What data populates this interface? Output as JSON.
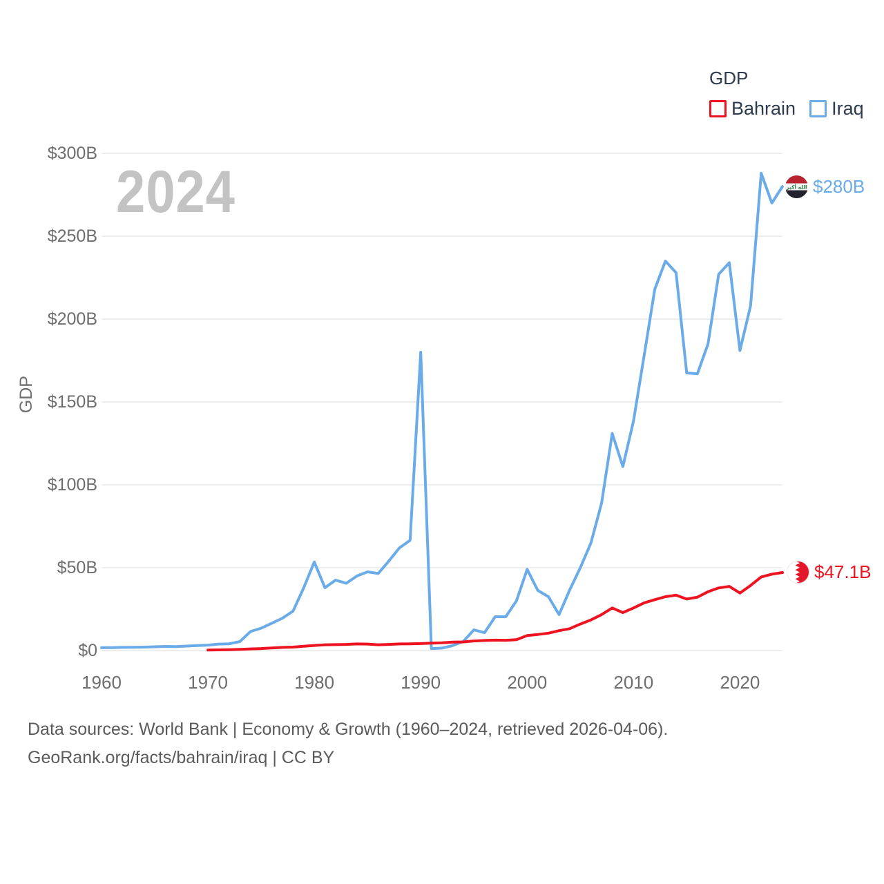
{
  "watermark": "2024",
  "legend": {
    "title": "GDP",
    "items": [
      {
        "label": "Bahrain",
        "color": "#ee1320"
      },
      {
        "label": "Iraq",
        "color": "#6aabe8"
      }
    ]
  },
  "footer": {
    "line1": "Data sources: World Bank | Economy & Growth (1960–2024, retrieved 2026-04-06).",
    "line2": "GeoRank.org/facts/bahrain/iraq | CC BY"
  },
  "chart_data": {
    "type": "line",
    "title": "GDP",
    "xlabel": "",
    "ylabel": "GDP",
    "grid": true,
    "legend_position": "top-right",
    "xlim": [
      1960,
      2024
    ],
    "ylim": [
      0,
      300
    ],
    "x_ticks": [
      1960,
      1970,
      1980,
      1990,
      2000,
      2010,
      2020
    ],
    "y_ticks": [
      {
        "value": 0,
        "label": "$0"
      },
      {
        "value": 50,
        "label": "$50B"
      },
      {
        "value": 100,
        "label": "$100B"
      },
      {
        "value": 150,
        "label": "$150B"
      },
      {
        "value": 200,
        "label": "$200B"
      },
      {
        "value": 250,
        "label": "$250B"
      },
      {
        "value": 300,
        "label": "$300B"
      }
    ],
    "unit": "billions of USD",
    "series": [
      {
        "name": "Bahrain",
        "color": "#ee1320",
        "end_label": "$47.1B",
        "end_value": 47.1,
        "end_marker": "bahrain-flag",
        "x_start": 1970,
        "x_step": 1,
        "values": [
          0.3,
          0.4,
          0.5,
          0.7,
          1.0,
          1.2,
          1.6,
          1.9,
          2.1,
          2.6,
          3.1,
          3.5,
          3.6,
          3.7,
          4.0,
          3.9,
          3.5,
          3.7,
          4.0,
          4.1,
          4.2,
          4.5,
          4.7,
          5.1,
          5.2,
          5.8,
          6.1,
          6.3,
          6.2,
          6.6,
          9.1,
          9.7,
          10.5,
          12.0,
          13.2,
          16.0,
          18.5,
          21.7,
          25.7,
          22.9,
          25.7,
          28.8,
          30.7,
          32.5,
          33.4,
          31.1,
          32.2,
          35.5,
          37.8,
          38.7,
          34.7,
          39.3,
          44.4,
          46.1,
          47.1
        ]
      },
      {
        "name": "Iraq",
        "color": "#6aabe8",
        "end_label": "$280B",
        "end_value": 280,
        "end_marker": "iraq-flag",
        "x_start": 1960,
        "x_step": 1,
        "values": [
          1.7,
          1.8,
          1.9,
          2.0,
          2.1,
          2.3,
          2.5,
          2.4,
          2.7,
          3.0,
          3.3,
          3.9,
          4.1,
          5.4,
          11.5,
          13.5,
          16.5,
          19.5,
          23.8,
          37.8,
          53.4,
          37.9,
          42.5,
          40.6,
          45.0,
          47.5,
          46.5,
          54.0,
          62.0,
          66.5,
          180.0,
          1.2,
          1.5,
          3.0,
          5.5,
          12.5,
          10.8,
          20.4,
          20.4,
          30.0,
          49.0,
          36.3,
          32.5,
          21.7,
          36.6,
          50.0,
          65.0,
          89.0,
          131.0,
          111.0,
          138.5,
          178.0,
          218.0,
          235.0,
          228.0,
          167.5,
          167.0,
          185.0,
          227.0,
          234.0,
          181.0,
          208.0,
          288.0,
          270.0,
          280.0
        ]
      }
    ]
  }
}
